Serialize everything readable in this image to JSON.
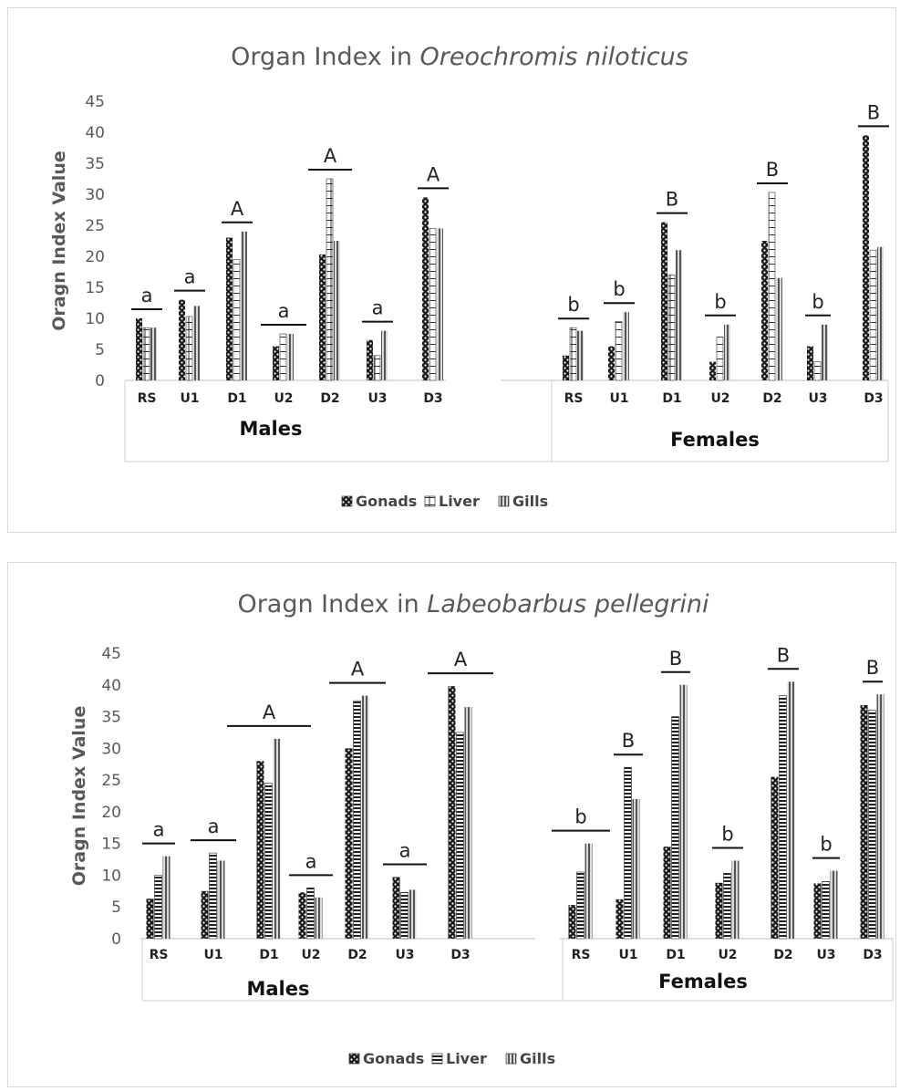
{
  "chart_data": [
    {
      "type": "bar",
      "title_plain": "Organ Index in ",
      "title_italic": "Oreochromis niloticus",
      "ylabel": "Oragn Index Value",
      "ylim": [
        0,
        45
      ],
      "yticks": [
        "0",
        "5",
        "10",
        "15",
        "20",
        "25",
        "30",
        "35",
        "40",
        "45"
      ],
      "categories": [
        "RS",
        "U1",
        "D1",
        "U2",
        "D2",
        "U3",
        "D3",
        "RS",
        "U1",
        "D1",
        "U2",
        "D2",
        "U3",
        "D3"
      ],
      "groups": [
        {
          "label": "Males",
          "categories": [
            "RS",
            "U1",
            "D1",
            "U2",
            "D2",
            "U3",
            "D3"
          ]
        },
        {
          "label": "Females",
          "categories": [
            "RS",
            "U1",
            "D1",
            "U2",
            "D2",
            "U3",
            "D3"
          ]
        }
      ],
      "series": [
        {
          "name": "Gonads",
          "values": [
            10,
            13,
            23,
            5.5,
            20.3,
            6.5,
            29.5,
            4,
            5.5,
            25.5,
            3,
            22.5,
            5.5,
            39.5
          ]
        },
        {
          "name": "Liver",
          "values": [
            8.5,
            10.3,
            19.5,
            7.5,
            32.5,
            4,
            24.5,
            8.5,
            9.5,
            17,
            7,
            30.3,
            3,
            21
          ]
        },
        {
          "name": "Gills",
          "values": [
            8.5,
            12,
            24,
            7.5,
            22.5,
            8,
            24.5,
            8,
            11,
            21,
            9,
            16.5,
            9,
            21.5
          ]
        }
      ],
      "significance": [
        "a",
        "a",
        "A",
        "a",
        "A",
        "a",
        "A",
        "b",
        "b",
        "B",
        "b",
        "B",
        "b",
        "B"
      ],
      "legend_position": "bottom",
      "grid": false
    },
    {
      "type": "bar",
      "title_plain": "Oragn Index in ",
      "title_italic": "Labeobarbus pellegrini",
      "ylabel": "Oragn Index Value",
      "ylim": [
        0,
        45
      ],
      "yticks": [
        "0",
        "5",
        "10",
        "15",
        "20",
        "25",
        "30",
        "35",
        "40",
        "45"
      ],
      "categories": [
        "RS",
        "U1",
        "D1",
        "U2",
        "D2",
        "U3",
        "D3",
        "RS",
        "U1",
        "D1",
        "U2",
        "D2",
        "U3",
        "D3"
      ],
      "groups": [
        {
          "label": "Males",
          "categories": [
            "RS",
            "U1",
            "D1",
            "U2",
            "D2",
            "U3",
            "D3"
          ]
        },
        {
          "label": "Females",
          "categories": [
            "RS",
            "U1",
            "D1",
            "U2",
            "D2",
            "U3",
            "D3"
          ]
        }
      ],
      "series": [
        {
          "name": "Gonads",
          "values": [
            6.3,
            7.5,
            28,
            7.3,
            30,
            9.7,
            39.8,
            5.3,
            6.2,
            14.5,
            8.8,
            25.5,
            8.7,
            36.8
          ]
        },
        {
          "name": "Liver",
          "values": [
            10,
            13.5,
            24.5,
            8,
            37.5,
            7.3,
            32.5,
            10.5,
            27,
            35,
            10.3,
            38.3,
            9,
            36
          ]
        },
        {
          "name": "Gills",
          "values": [
            13,
            12.3,
            31.5,
            6.5,
            38.3,
            7.7,
            36.5,
            15,
            22,
            40,
            12.3,
            40.5,
            10.7,
            38.5
          ]
        }
      ],
      "significance": [
        "a",
        "a",
        "A",
        "a",
        "A",
        "a",
        "A",
        "b",
        "B",
        "B",
        "b",
        "B",
        "b",
        "B"
      ],
      "legend_position": "bottom",
      "grid": false
    }
  ]
}
